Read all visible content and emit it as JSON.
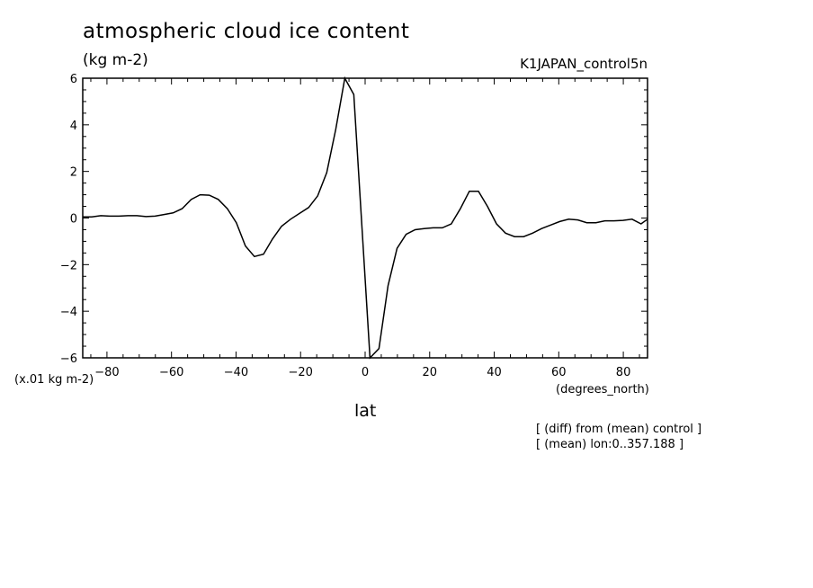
{
  "header": {
    "title": "atmospheric cloud ice content",
    "units": "(kg m-2)",
    "run_name": "K1JAPAN_control5n"
  },
  "axes": {
    "y_scale_label": "(x.01 kg m-2)",
    "x_units_label": "(degrees_north)",
    "x_name": "lat"
  },
  "notes": [
    "[ (diff) from (mean) control ]",
    "[ (mean) lon:0..357.188 ]"
  ],
  "chart_data": {
    "type": "line",
    "title": "atmospheric cloud ice content",
    "xlabel": "lat",
    "ylabel": "(x.01 kg m-2)",
    "xlim": [
      -87.5,
      87.5
    ],
    "ylim": [
      -6,
      6
    ],
    "x_ticks": [
      -80,
      -60,
      -40,
      -20,
      0,
      20,
      40,
      60,
      80
    ],
    "y_ticks": [
      -6,
      -4,
      -2,
      0,
      2,
      4,
      6
    ],
    "grid": false,
    "series": [
      {
        "values": [
          [
            -87.5,
            0.05
          ],
          [
            -84.7,
            0.05
          ],
          [
            -81.9,
            0.1
          ],
          [
            -79.1,
            0.08
          ],
          [
            -76.3,
            0.08
          ],
          [
            -73.5,
            0.1
          ],
          [
            -70.7,
            0.1
          ],
          [
            -67.9,
            0.06
          ],
          [
            -65.1,
            0.08
          ],
          [
            -62.3,
            0.15
          ],
          [
            -59.5,
            0.22
          ],
          [
            -56.7,
            0.4
          ],
          [
            -53.9,
            0.8
          ],
          [
            -51.1,
            1.0
          ],
          [
            -48.3,
            0.98
          ],
          [
            -45.5,
            0.8
          ],
          [
            -42.7,
            0.4
          ],
          [
            -39.9,
            -0.2
          ],
          [
            -37.1,
            -1.2
          ],
          [
            -34.3,
            -1.65
          ],
          [
            -31.5,
            -1.55
          ],
          [
            -28.7,
            -0.9
          ],
          [
            -25.9,
            -0.35
          ],
          [
            -23.1,
            -0.05
          ],
          [
            -20.3,
            0.2
          ],
          [
            -17.5,
            0.45
          ],
          [
            -14.7,
            0.95
          ],
          [
            -11.9,
            1.95
          ],
          [
            -9.1,
            3.8
          ],
          [
            -6.3,
            6.0
          ],
          [
            -3.5,
            5.3
          ],
          [
            1.5,
            -6.0
          ],
          [
            4.3,
            -5.6
          ],
          [
            7.1,
            -2.9
          ],
          [
            9.9,
            -1.3
          ],
          [
            12.7,
            -0.7
          ],
          [
            15.5,
            -0.5
          ],
          [
            18.3,
            -0.45
          ],
          [
            21.1,
            -0.42
          ],
          [
            23.9,
            -0.42
          ],
          [
            26.7,
            -0.25
          ],
          [
            29.5,
            0.4
          ],
          [
            32.3,
            1.15
          ],
          [
            35.1,
            1.15
          ],
          [
            37.9,
            0.5
          ],
          [
            40.7,
            -0.25
          ],
          [
            43.5,
            -0.65
          ],
          [
            46.3,
            -0.8
          ],
          [
            49.1,
            -0.8
          ],
          [
            51.9,
            -0.65
          ],
          [
            54.7,
            -0.45
          ],
          [
            57.5,
            -0.3
          ],
          [
            60.3,
            -0.15
          ],
          [
            63.1,
            -0.05
          ],
          [
            65.9,
            -0.08
          ],
          [
            68.7,
            -0.2
          ],
          [
            71.5,
            -0.2
          ],
          [
            74.3,
            -0.12
          ],
          [
            77.1,
            -0.12
          ],
          [
            79.9,
            -0.1
          ],
          [
            82.7,
            -0.05
          ],
          [
            85.5,
            -0.25
          ],
          [
            87.5,
            -0.05
          ]
        ]
      }
    ]
  }
}
